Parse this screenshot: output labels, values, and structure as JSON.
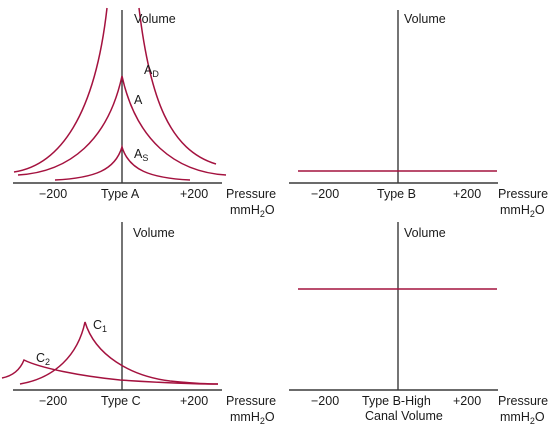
{
  "panels": {
    "type_a": {
      "y_label": "Volume",
      "ticks": [
        "−200",
        "Type A",
        "+200"
      ],
      "pressure_label": "Pressure",
      "unit_pre": "mmH",
      "unit_sub": "2",
      "unit_post": "O",
      "curve_labels": {
        "ad": {
          "main": "A",
          "sub": "D"
        },
        "a": {
          "main": "A"
        },
        "as": {
          "main": "A",
          "sub": "S"
        }
      }
    },
    "type_b": {
      "y_label": "Volume",
      "ticks": [
        "−200",
        "Type B",
        "+200"
      ],
      "pressure_label": "Pressure",
      "unit_pre": "mmH",
      "unit_sub": "2",
      "unit_post": "O"
    },
    "type_c": {
      "y_label": "Volume",
      "ticks": [
        "−200",
        "Type C",
        "+200"
      ],
      "pressure_label": "Pressure",
      "unit_pre": "mmH",
      "unit_sub": "2",
      "unit_post": "O",
      "curve_labels": {
        "c1": {
          "main": "C",
          "sub": "1"
        },
        "c2": {
          "main": "C",
          "sub": "2"
        }
      }
    },
    "type_b_high": {
      "y_label": "Volume",
      "ticks": [
        "−200",
        "Type B-High",
        "+200"
      ],
      "tick_line2": "Canal Volume",
      "pressure_label": "Pressure",
      "unit_pre": "mmH",
      "unit_sub": "2",
      "unit_post": "O"
    }
  },
  "colors": {
    "curve": "#a4123f",
    "axis": "#3a3a3a",
    "text": "#1a1a1a"
  }
}
